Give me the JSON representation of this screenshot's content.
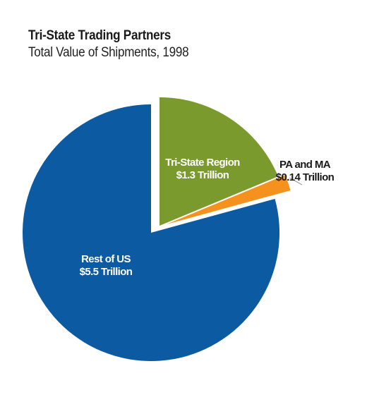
{
  "chart_data": {
    "type": "pie",
    "title": "Tri-State Trading Partners",
    "subtitle": "Total Value of Shipments, 1998",
    "slices": [
      {
        "label": "Tri-State Region",
        "value_label": "$1.3 Trillion",
        "value": 1.3,
        "unit": "trillion USD",
        "color": "#7a9a2e",
        "exploded": true
      },
      {
        "label": "PA and MA",
        "value_label": "$0.14 Trillion",
        "value": 0.14,
        "unit": "trillion USD",
        "color": "#f5921e",
        "exploded": true
      },
      {
        "label": "Rest of US",
        "value_label": "$5.5 Trillion",
        "value": 5.5,
        "unit": "trillion USD",
        "color": "#0b5aa2",
        "exploded": false
      }
    ]
  }
}
